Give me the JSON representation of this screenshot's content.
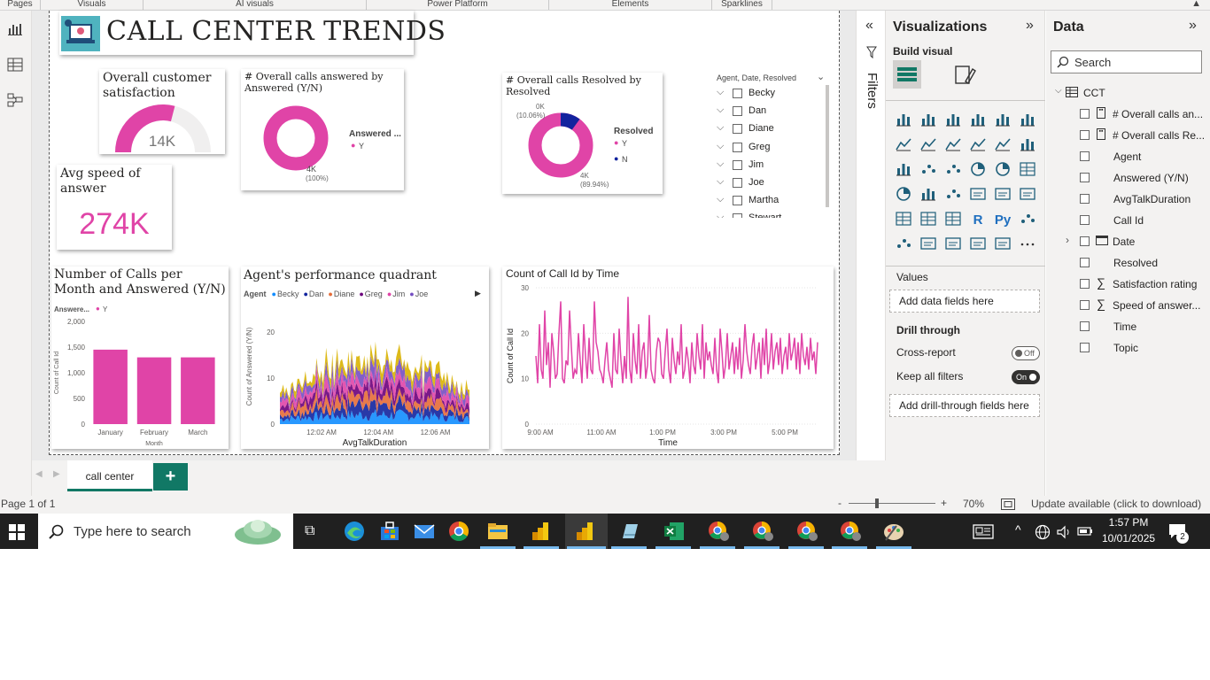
{
  "ribbon": {
    "groups": [
      "Pages",
      "Visuals",
      "AI visuals",
      "Power Platform",
      "Elements",
      "Sparklines"
    ]
  },
  "report": {
    "title": "CALL CENTER TRENDS",
    "csat": {
      "title": "Overall customer satisfaction",
      "value": "14K",
      "fraction": 0.58
    },
    "answered": {
      "title": "# Overall calls answered by Answered (Y/N)",
      "legend_title": "Answered ...",
      "legend": [
        "Y"
      ],
      "label": "4K",
      "pct": "(100%)"
    },
    "resolved": {
      "title": "# Overall calls Resolved by Resolved",
      "legend_title": "Resolved",
      "legend": [
        "Y",
        "N"
      ],
      "label_y": "4K",
      "pct_y": "(89.94%)",
      "label_n": "0K",
      "pct_n": "(10.06%)",
      "share_n": 0.1006
    },
    "slicer": {
      "title": "Agent, Date, Resolved",
      "items": [
        "Becky",
        "Dan",
        "Diane",
        "Greg",
        "Jim",
        "Joe",
        "Martha",
        "Stewart"
      ]
    },
    "speed": {
      "title": "Avg speed of answer",
      "value": "274K"
    },
    "colors": {
      "pink": "#e044a7",
      "navy": "#12239e",
      "accent": "#117865"
    }
  },
  "chart_data": [
    {
      "type": "bar",
      "title": "Number of Calls per Month and Answered (Y/N)",
      "legend_title": "Answere...",
      "categories": [
        "January",
        "February",
        "March"
      ],
      "series": [
        {
          "name": "Y",
          "values": [
            1450,
            1300,
            1300
          ]
        }
      ],
      "xlabel": "Month",
      "ylabel": "Count of Call Id",
      "yticks": [
        "0",
        "500",
        "1,000",
        "1,500",
        "2,000"
      ],
      "ylim": [
        0,
        2000
      ]
    },
    {
      "type": "area",
      "title": "Agent's performance quadrant",
      "legend_title": "Agent",
      "legend": [
        "Becky",
        "Dan",
        "Diane",
        "Greg",
        "Jim",
        "Joe"
      ],
      "legend_colors": [
        "#118dff",
        "#12239e",
        "#e66c37",
        "#6b007b",
        "#e044a7",
        "#744ec2"
      ],
      "xlabel": "AvgTalkDuration",
      "ylabel": "Count of Answered (Y/N)",
      "xticks": [
        "12:02 AM",
        "12:04 AM",
        "12:06 AM"
      ],
      "yticks": [
        "0",
        "10",
        "20"
      ],
      "ylim": [
        0,
        25
      ]
    },
    {
      "type": "line",
      "title": "Count of Call Id by Time",
      "xlabel": "Time",
      "ylabel": "Count of Call Id",
      "xticks": [
        "9:00 AM",
        "11:00 AM",
        "1:00 PM",
        "3:00 PM",
        "5:00 PM"
      ],
      "yticks": [
        "0",
        "10",
        "20",
        "30"
      ],
      "ylim": [
        0,
        30
      ],
      "series": [
        {
          "name": "",
          "values": [
            15,
            9,
            22,
            12,
            10,
            25,
            13,
            18,
            8,
            20,
            16,
            10,
            11,
            20,
            27,
            10,
            9,
            14,
            13,
            25,
            17,
            10,
            12,
            11,
            20,
            14,
            9,
            22,
            15,
            10,
            19,
            12,
            11,
            27,
            18,
            16,
            12,
            11,
            9,
            14,
            18,
            12,
            10,
            8,
            20,
            12,
            11,
            21,
            14,
            9,
            15,
            10,
            28,
            12,
            9,
            20,
            14,
            11,
            22,
            10,
            16,
            18,
            10,
            13,
            24,
            12,
            10,
            9,
            16,
            19,
            18,
            11,
            10,
            16,
            21,
            12,
            9,
            19,
            14,
            11,
            16,
            13,
            22,
            10,
            12,
            17,
            14,
            9,
            18,
            13,
            11,
            20,
            15,
            12,
            22,
            10,
            18,
            14,
            16,
            13,
            11,
            19,
            12,
            9,
            21,
            16,
            10,
            13,
            20,
            12,
            15,
            18,
            11,
            17,
            12,
            19,
            10,
            14,
            22,
            16,
            13,
            11,
            17,
            20,
            12,
            15,
            18,
            10,
            19,
            13,
            21,
            11,
            14,
            20,
            12,
            16,
            18,
            13,
            19,
            11,
            15,
            17,
            12,
            20,
            14,
            16,
            19,
            12,
            18,
            11,
            20,
            15,
            13,
            17,
            12,
            19,
            14,
            16,
            11,
            18
          ]
        }
      ]
    }
  ],
  "filters": {
    "label": "Filters"
  },
  "viz": {
    "title": "Visualizations",
    "build_label": "Build visual",
    "values_label": "Values",
    "values_placeholder": "Add data fields here",
    "drill_label": "Drill through",
    "cross_report_label": "Cross-report",
    "cross_report_state": "Off",
    "keep_filters_label": "Keep all filters",
    "keep_filters_state": "On",
    "drill_placeholder": "Add drill-through fields here",
    "more_label": "···"
  },
  "data": {
    "title": "Data",
    "search_placeholder": "Search",
    "table": "CCT",
    "fields": [
      "# Overall calls an...",
      "# Overall calls Re...",
      "Agent",
      "Answered (Y/N)",
      "AvgTalkDuration",
      "Call Id",
      "Date",
      "Resolved",
      "Satisfaction rating",
      "Speed of answer..."
    ],
    "fields_after": [
      "Time",
      "Topic"
    ]
  },
  "tabs": {
    "active": "call center",
    "add": "+"
  },
  "status": {
    "page": "Page 1 of 1",
    "zoom": "70%",
    "minus": "-",
    "plus": "+",
    "update": "Update available (click to download)"
  },
  "taskbar": {
    "search_placeholder": "Type here to search",
    "time": "1:57 PM",
    "date": "10/01/2025",
    "notif": "2"
  }
}
